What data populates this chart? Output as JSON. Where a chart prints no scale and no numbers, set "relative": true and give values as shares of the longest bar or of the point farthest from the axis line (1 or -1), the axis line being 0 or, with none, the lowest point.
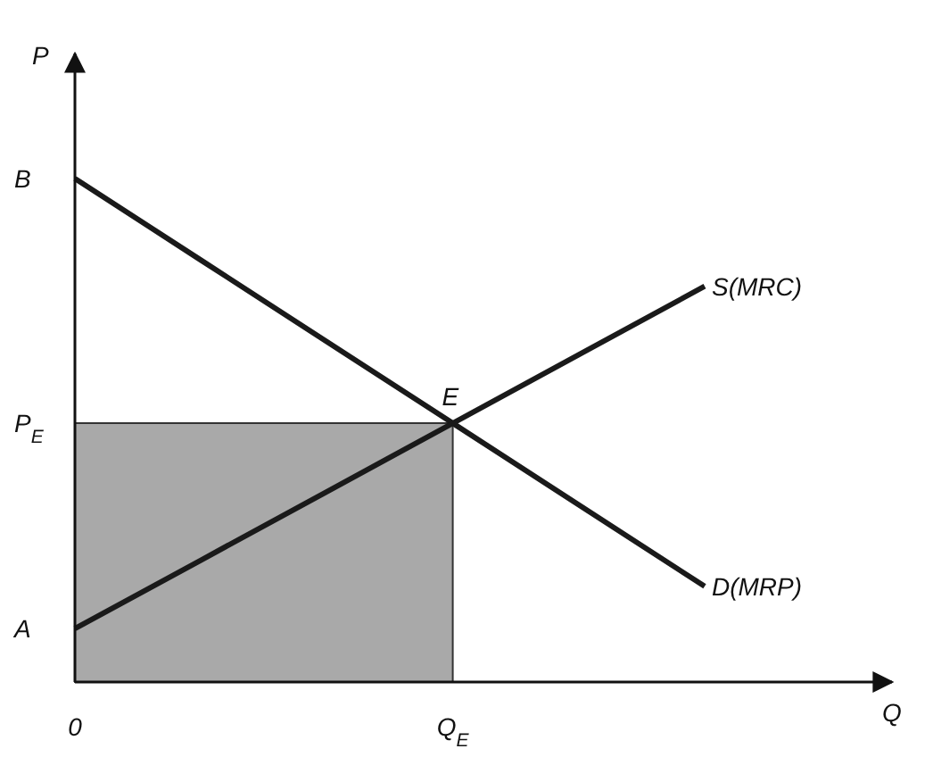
{
  "chart_data": {
    "type": "line",
    "relative": true,
    "xlabel": "Q",
    "ylabel": "P",
    "categories": [
      "0",
      null,
      null,
      "Q$_{E}$",
      null,
      null
    ],
    "series": [
      {
        "type": "area",
        "color": "#a9a9a9",
        "values": [
          0.514,
          0.514,
          0.514,
          0.514,
          null,
          null
        ]
      },
      {
        "name": "D(MRP)",
        "color": "#1a1a1a",
        "values": [
          1,
          0.838,
          0.676,
          0.514,
          0.352,
          0.19
        ]
      },
      {
        "name": "S(MRC)",
        "color": "#1a1a1a",
        "values": [
          0.106,
          0.242,
          0.378,
          0.514,
          0.65,
          0.786
        ]
      }
    ],
    "annotations": [
      "B",
      "P$_{E}$",
      "A",
      "E"
    ],
    "legend": false
  }
}
